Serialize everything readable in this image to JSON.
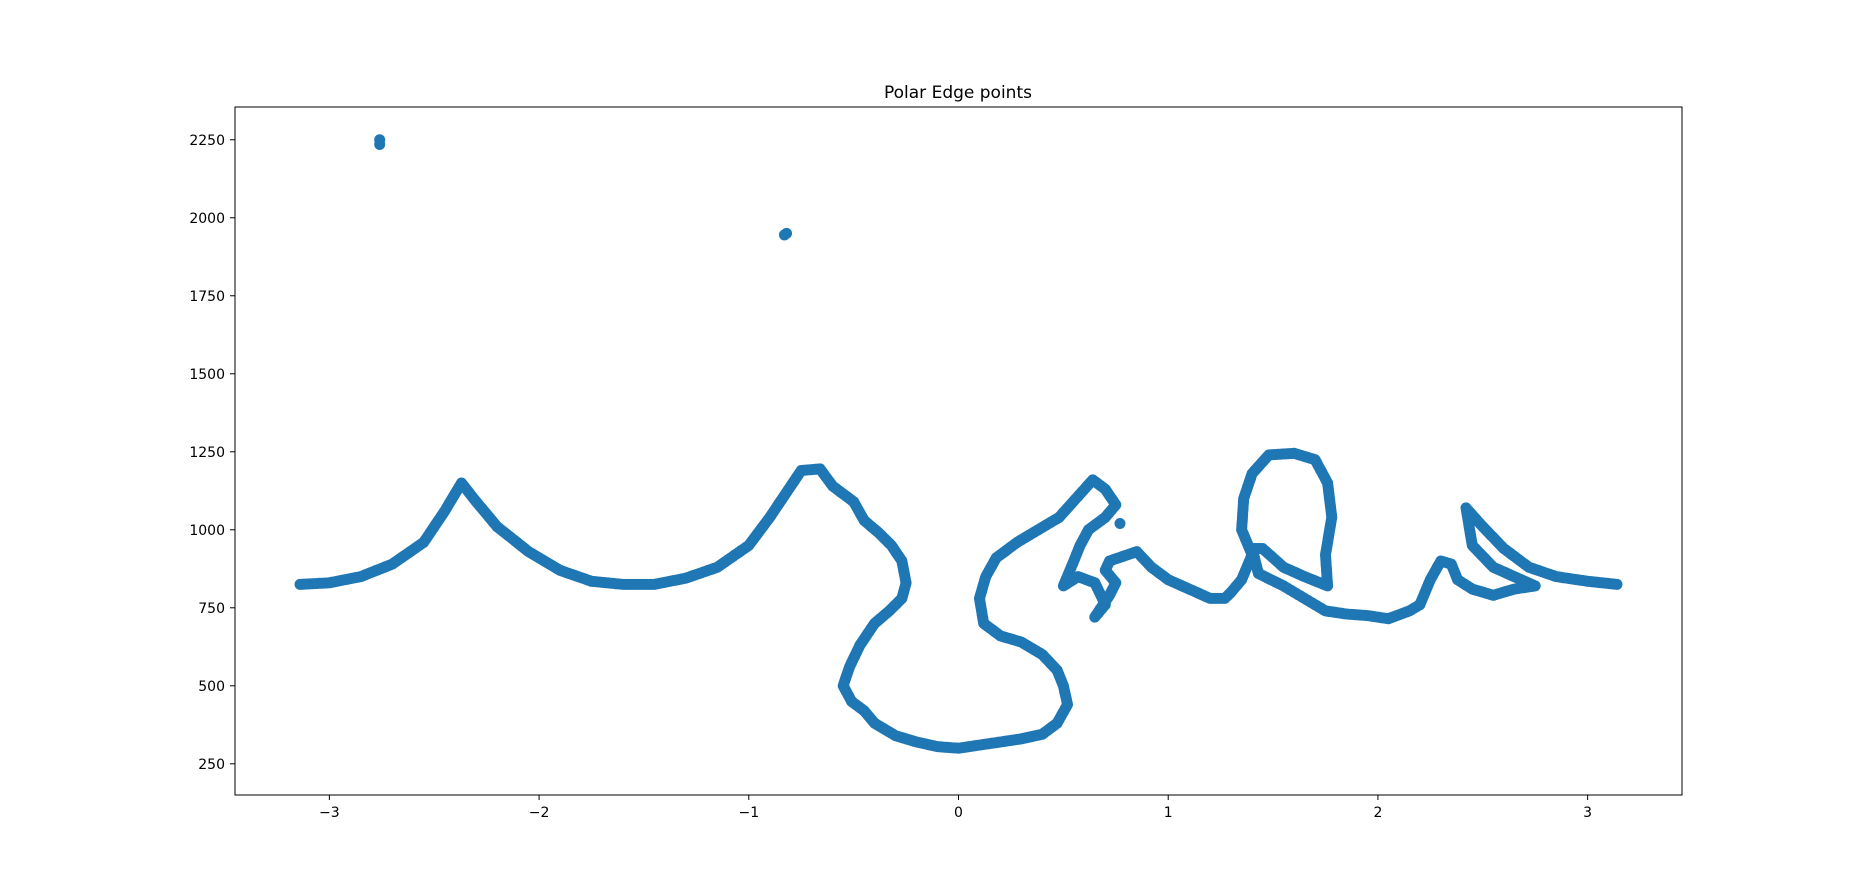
{
  "chart_data": {
    "type": "scatter",
    "title": "Polar Edge points",
    "xlabel": "",
    "ylabel": "",
    "xlim": [
      -3.45,
      3.45
    ],
    "ylim": [
      150,
      2355
    ],
    "xticks": [
      -3,
      -2,
      -1,
      0,
      1,
      2,
      3
    ],
    "yticks": [
      250,
      500,
      750,
      1000,
      1250,
      1500,
      1750,
      2000,
      2250
    ],
    "xtick_labels": [
      "−3",
      "−2",
      "−1",
      "0",
      "1",
      "2",
      "3"
    ],
    "ytick_labels": [
      "250",
      "500",
      "750",
      "1000",
      "1250",
      "1500",
      "1750",
      "2000",
      "2250"
    ],
    "grid": false,
    "marker_color": "#1f77b4",
    "series": [
      {
        "trace": [
          [
            -3.14,
            825
          ],
          [
            -3.0,
            830
          ],
          [
            -2.85,
            850
          ],
          [
            -2.7,
            890
          ],
          [
            -2.55,
            960
          ],
          [
            -2.45,
            1060
          ],
          [
            -2.37,
            1150
          ],
          [
            -2.3,
            1090
          ],
          [
            -2.2,
            1010
          ],
          [
            -2.05,
            930
          ],
          [
            -1.9,
            870
          ],
          [
            -1.75,
            835
          ],
          [
            -1.6,
            825
          ],
          [
            -1.45,
            825
          ],
          [
            -1.3,
            845
          ],
          [
            -1.15,
            880
          ],
          [
            -1.0,
            950
          ],
          [
            -0.9,
            1040
          ],
          [
            -0.8,
            1140
          ],
          [
            -0.75,
            1190
          ],
          [
            -0.66,
            1195
          ],
          [
            -0.6,
            1140
          ],
          [
            -0.5,
            1090
          ],
          [
            -0.45,
            1030
          ],
          [
            -0.38,
            990
          ],
          [
            -0.32,
            950
          ],
          [
            -0.27,
            900
          ],
          [
            -0.25,
            830
          ],
          [
            -0.27,
            780
          ],
          [
            -0.33,
            740
          ],
          [
            -0.4,
            700
          ],
          [
            -0.47,
            630
          ],
          [
            -0.52,
            560
          ],
          [
            -0.55,
            500
          ],
          [
            -0.51,
            450
          ],
          [
            -0.45,
            420
          ],
          [
            -0.4,
            380
          ],
          [
            -0.3,
            340
          ],
          [
            -0.2,
            320
          ],
          [
            -0.1,
            305
          ],
          [
            0.0,
            300
          ],
          [
            0.1,
            310
          ],
          [
            0.2,
            320
          ],
          [
            0.3,
            330
          ],
          [
            0.4,
            345
          ],
          [
            0.47,
            380
          ],
          [
            0.52,
            440
          ],
          [
            0.5,
            500
          ],
          [
            0.47,
            550
          ],
          [
            0.4,
            600
          ],
          [
            0.3,
            640
          ],
          [
            0.2,
            660
          ],
          [
            0.12,
            700
          ],
          [
            0.1,
            780
          ],
          [
            0.13,
            850
          ],
          [
            0.18,
            910
          ],
          [
            0.28,
            960
          ],
          [
            0.38,
            1000
          ],
          [
            0.48,
            1040
          ],
          [
            0.56,
            1100
          ],
          [
            0.64,
            1160
          ],
          [
            0.7,
            1130
          ],
          [
            0.75,
            1080
          ],
          [
            0.7,
            1040
          ],
          [
            0.62,
            1000
          ],
          [
            0.58,
            950
          ],
          [
            0.55,
            900
          ],
          [
            0.5,
            820
          ],
          [
            0.57,
            850
          ],
          [
            0.65,
            830
          ],
          [
            0.7,
            760
          ],
          [
            0.65,
            720
          ],
          [
            0.72,
            790
          ],
          [
            0.75,
            830
          ],
          [
            0.7,
            870
          ],
          [
            0.72,
            900
          ],
          [
            0.85,
            930
          ],
          [
            0.92,
            880
          ],
          [
            1.0,
            840
          ],
          [
            1.1,
            810
          ],
          [
            1.2,
            780
          ],
          [
            1.27,
            780
          ],
          [
            1.3,
            800
          ],
          [
            1.35,
            840
          ],
          [
            1.4,
            920
          ],
          [
            1.35,
            1000
          ],
          [
            1.36,
            1100
          ],
          [
            1.4,
            1180
          ],
          [
            1.48,
            1240
          ],
          [
            1.6,
            1245
          ],
          [
            1.7,
            1225
          ],
          [
            1.76,
            1150
          ],
          [
            1.78,
            1040
          ],
          [
            1.75,
            920
          ],
          [
            1.76,
            820
          ],
          [
            1.65,
            850
          ],
          [
            1.55,
            880
          ],
          [
            1.45,
            940
          ],
          [
            1.4,
            940
          ],
          [
            1.43,
            860
          ],
          [
            1.55,
            820
          ],
          [
            1.65,
            780
          ],
          [
            1.75,
            740
          ],
          [
            1.85,
            730
          ],
          [
            1.95,
            725
          ],
          [
            2.05,
            715
          ],
          [
            2.15,
            740
          ],
          [
            2.2,
            760
          ],
          [
            2.25,
            840
          ],
          [
            2.3,
            900
          ],
          [
            2.35,
            890
          ],
          [
            2.38,
            840
          ],
          [
            2.45,
            810
          ],
          [
            2.55,
            790
          ],
          [
            2.65,
            810
          ],
          [
            2.75,
            820
          ],
          [
            2.65,
            850
          ],
          [
            2.55,
            880
          ],
          [
            2.45,
            950
          ],
          [
            2.42,
            1070
          ],
          [
            2.5,
            1010
          ],
          [
            2.6,
            940
          ],
          [
            2.72,
            880
          ],
          [
            2.85,
            850
          ],
          [
            3.0,
            835
          ],
          [
            3.14,
            825
          ]
        ]
      },
      {
        "points": [
          [
            -2.76,
            2250
          ],
          [
            -2.76,
            2235
          ],
          [
            -0.83,
            1945
          ],
          [
            -0.82,
            1950
          ],
          [
            0.77,
            1020
          ]
        ]
      }
    ]
  }
}
